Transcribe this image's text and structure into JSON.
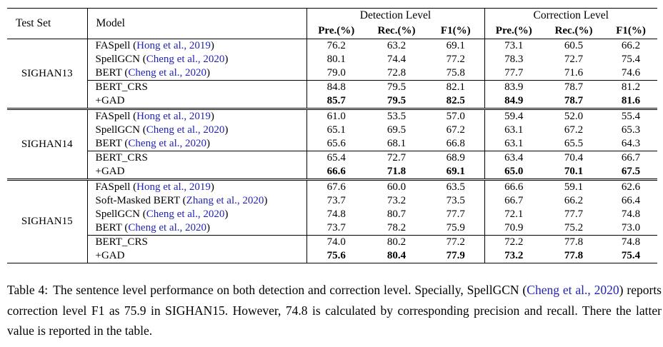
{
  "table": {
    "header": {
      "test_set": "Test Set",
      "model": "Model",
      "detection_label": "Detection Level",
      "correction_label": "Correction Level",
      "metrics": [
        "Pre.(%)",
        "Rec.(%)",
        "F1(%)",
        "Pre.(%)",
        "Rec.(%)",
        "F1(%)"
      ]
    },
    "blocks": [
      {
        "test_set": "SIGHAN13",
        "rows": [
          {
            "model": "FASpell",
            "cite_open": " (",
            "cite": "Hong et al., 2019",
            "cite_close": ")",
            "rule_above": false,
            "bold": false,
            "values": [
              "76.2",
              "63.2",
              "69.1",
              "73.1",
              "60.5",
              "66.2"
            ]
          },
          {
            "model": "SpellGCN",
            "cite_open": " (",
            "cite": "Cheng et al., 2020",
            "cite_close": ")",
            "rule_above": false,
            "bold": false,
            "values": [
              "80.1",
              "74.4",
              "77.2",
              "78.3",
              "72.7",
              "75.4"
            ]
          },
          {
            "model": "BERT",
            "cite_open": " (",
            "cite": "Cheng et al., 2020",
            "cite_close": ")",
            "rule_above": false,
            "bold": false,
            "values": [
              "79.0",
              "72.8",
              "75.8",
              "77.7",
              "71.6",
              "74.6"
            ]
          },
          {
            "model": "BERT_CRS",
            "cite_open": "",
            "cite": "",
            "cite_close": "",
            "rule_above": true,
            "bold": false,
            "values": [
              "84.8",
              "79.5",
              "82.1",
              "83.9",
              "78.7",
              "81.2"
            ]
          },
          {
            "model": "+GAD",
            "cite_open": "",
            "cite": "",
            "cite_close": "",
            "rule_above": false,
            "bold": true,
            "values": [
              "85.7",
              "79.5",
              "82.5",
              "84.9",
              "78.7",
              "81.6"
            ]
          }
        ]
      },
      {
        "test_set": "SIGHAN14",
        "rows": [
          {
            "model": "FASpell",
            "cite_open": " (",
            "cite": "Hong et al., 2019",
            "cite_close": ")",
            "rule_above": false,
            "bold": false,
            "values": [
              "61.0",
              "53.5",
              "57.0",
              "59.4",
              "52.0",
              "55.4"
            ]
          },
          {
            "model": "SpellGCN",
            "cite_open": " (",
            "cite": "Cheng et al., 2020",
            "cite_close": ")",
            "rule_above": false,
            "bold": false,
            "values": [
              "65.1",
              "69.5",
              "67.2",
              "63.1",
              "67.2",
              "65.3"
            ]
          },
          {
            "model": "BERT",
            "cite_open": " (",
            "cite": "Cheng et al., 2020",
            "cite_close": ")",
            "rule_above": false,
            "bold": false,
            "values": [
              "65.6",
              "68.1",
              "66.8",
              "63.1",
              "65.5",
              "64.3"
            ]
          },
          {
            "model": "BERT_CRS",
            "cite_open": "",
            "cite": "",
            "cite_close": "",
            "rule_above": true,
            "bold": false,
            "values": [
              "65.4",
              "72.7",
              "68.9",
              "63.4",
              "70.4",
              "66.7"
            ]
          },
          {
            "model": "+GAD",
            "cite_open": "",
            "cite": "",
            "cite_close": "",
            "rule_above": false,
            "bold": true,
            "values": [
              "66.6",
              "71.8",
              "69.1",
              "65.0",
              "70.1",
              "67.5"
            ]
          }
        ]
      },
      {
        "test_set": "SIGHAN15",
        "rows": [
          {
            "model": "FASpell",
            "cite_open": " (",
            "cite": "Hong et al., 2019",
            "cite_close": ")",
            "rule_above": false,
            "bold": false,
            "values": [
              "67.6",
              "60.0",
              "63.5",
              "66.6",
              "59.1",
              "62.6"
            ]
          },
          {
            "model": "Soft-Masked BERT",
            "cite_open": " (",
            "cite": "Zhang et al., 2020",
            "cite_close": ")",
            "rule_above": false,
            "bold": false,
            "values": [
              "73.7",
              "73.2",
              "73.5",
              "66.7",
              "66.2",
              "66.4"
            ]
          },
          {
            "model": "SpellGCN",
            "cite_open": " (",
            "cite": "Cheng et al., 2020",
            "cite_close": ")",
            "rule_above": false,
            "bold": false,
            "values": [
              "74.8",
              "80.7",
              "77.7",
              "72.1",
              "77.7",
              "74.8"
            ]
          },
          {
            "model": "BERT",
            "cite_open": " (",
            "cite": "Cheng et al., 2020",
            "cite_close": ")",
            "rule_above": false,
            "bold": false,
            "values": [
              "73.7",
              "78.2",
              "75.9",
              "70.9",
              "75.2",
              "73.0"
            ]
          },
          {
            "model": "BERT_CRS",
            "cite_open": "",
            "cite": "",
            "cite_close": "",
            "rule_above": true,
            "bold": false,
            "values": [
              "74.0",
              "80.2",
              "77.2",
              "72.2",
              "77.8",
              "74.8"
            ]
          },
          {
            "model": "+GAD",
            "cite_open": "",
            "cite": "",
            "cite_close": "",
            "rule_above": false,
            "bold": true,
            "values": [
              "75.6",
              "80.4",
              "77.9",
              "73.2",
              "77.8",
              "75.4"
            ]
          }
        ]
      }
    ]
  },
  "caption": {
    "label": "Table 4:",
    "part1": "The sentence level performance on both detection and correction level. Specially, SpellGCN (",
    "link": "Cheng et al., 2020",
    "part2": ") reports correction level F1 as 75.9 in SIGHAN15. However, 74.8 is calculated by corresponding precision and recall. There the latter value is reported in the table."
  }
}
